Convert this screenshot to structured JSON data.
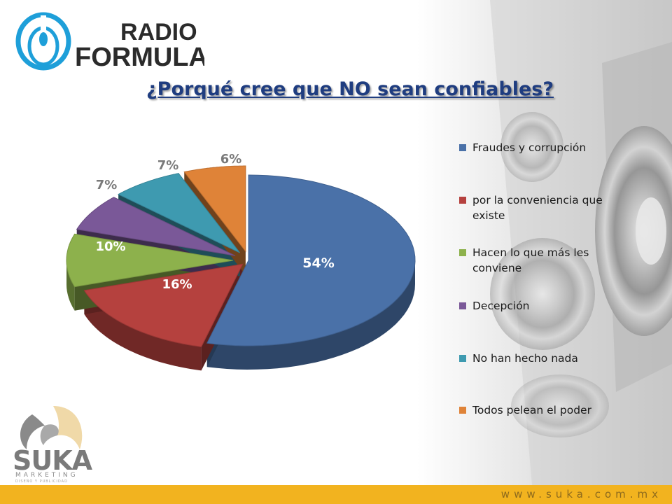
{
  "header": {
    "logo_line1": "RADIO",
    "logo_line2": "FORMULA"
  },
  "chart_data": {
    "type": "pie",
    "title": "¿Porqué cree que NO sean confiables?",
    "categories": [
      "Fraudes y corrupción",
      "por la conveniencia que existe",
      "Hacen lo que más les conviene",
      "Decepción",
      "No han hecho nada",
      "Todos pelean el poder"
    ],
    "values": [
      54,
      16,
      10,
      7,
      7,
      6
    ],
    "labels": [
      "54%",
      "16%",
      "10%",
      "7%",
      "7%",
      "6%"
    ],
    "colors": [
      "#4a71a8",
      "#b5413e",
      "#8db14c",
      "#7a5898",
      "#3e9ab0",
      "#df8338"
    ],
    "legend_lines": [
      [
        "Fraudes y corrupción"
      ],
      [
        "por la conveniencia que",
        "existe"
      ],
      [
        "Hacen lo que más les",
        "conviene"
      ],
      [
        "Decepción"
      ],
      [
        "No han hecho nada"
      ],
      [
        "Todos pelean el poder"
      ]
    ],
    "legend_position": "right",
    "style": "3d-exploded"
  },
  "footer": {
    "brand": "SUKA",
    "brand_sub": "MARKETING",
    "brand_tagline": "DISEÑO Y PUBLICIDAD",
    "url": "www.suka.com.mx",
    "bar_color": "#f2b31f"
  }
}
